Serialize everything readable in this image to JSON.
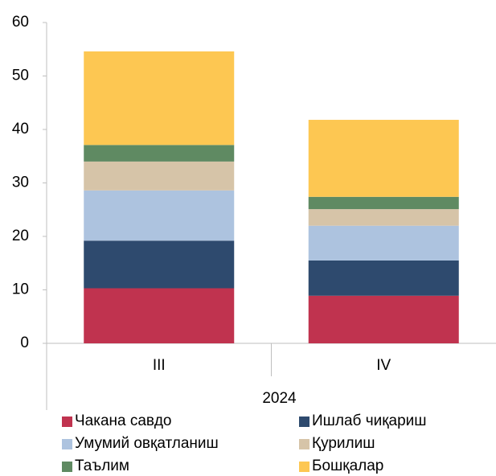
{
  "chart_data": {
    "type": "stacked_bar",
    "categories": [
      "III",
      "IV"
    ],
    "category_group": "2024",
    "series": [
      {
        "name": "Чакана савдо",
        "color": "#c0334f",
        "values": [
          10.3,
          8.9
        ]
      },
      {
        "name": "Ишлаб чиқариш",
        "color": "#2e4a6e",
        "values": [
          8.9,
          6.6
        ]
      },
      {
        "name": "Умумий овқатланиш",
        "color": "#adc3df",
        "values": [
          9.4,
          6.5
        ]
      },
      {
        "name": "Қурилиш",
        "color": "#d6c4a8",
        "values": [
          5.4,
          3.1
        ]
      },
      {
        "name": "Таълим",
        "color": "#5f8a62",
        "values": [
          3.1,
          2.3
        ]
      },
      {
        "name": "Бошқалар",
        "color": "#fdc752",
        "values": [
          17.5,
          14.4
        ]
      }
    ],
    "ylim": [
      0,
      60
    ],
    "yticks": [
      0,
      10,
      20,
      30,
      40,
      50,
      60
    ],
    "grid": false
  }
}
